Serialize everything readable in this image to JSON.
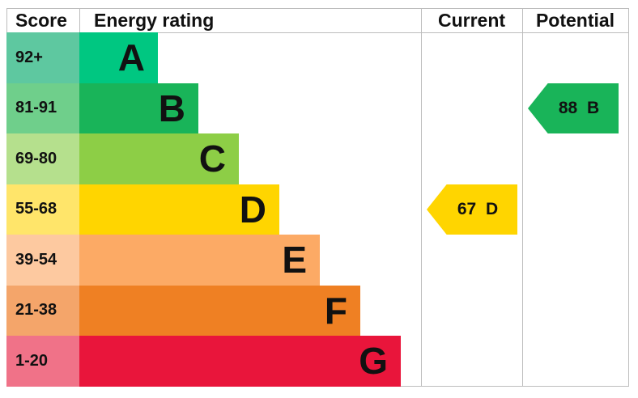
{
  "chart_data": {
    "type": "bar",
    "headers": {
      "score": "Score",
      "rating": "Energy rating",
      "current": "Current",
      "potential": "Potential"
    },
    "bands": [
      {
        "letter": "A",
        "score": "92+",
        "color": "#00c781",
        "score_color": "#5ec8a0"
      },
      {
        "letter": "B",
        "score": "81-91",
        "color": "#19b459",
        "score_color": "#6fcf8b"
      },
      {
        "letter": "C",
        "score": "69-80",
        "color": "#8dce46",
        "score_color": "#b5e08d"
      },
      {
        "letter": "D",
        "score": "55-68",
        "color": "#ffd500",
        "score_color": "#ffe56a"
      },
      {
        "letter": "E",
        "score": "39-54",
        "color": "#fcaa65",
        "score_color": "#fdc9a0"
      },
      {
        "letter": "F",
        "score": "21-38",
        "color": "#ef8023",
        "score_color": "#f4a56a"
      },
      {
        "letter": "G",
        "score": "1-20",
        "color": "#e9153b",
        "score_color": "#f07288"
      }
    ],
    "current": {
      "value": 67,
      "letter": "D",
      "label": "67 D",
      "color": "#ffd500"
    },
    "potential": {
      "value": 88,
      "letter": "B",
      "label": "88 B",
      "color": "#19b459"
    }
  }
}
